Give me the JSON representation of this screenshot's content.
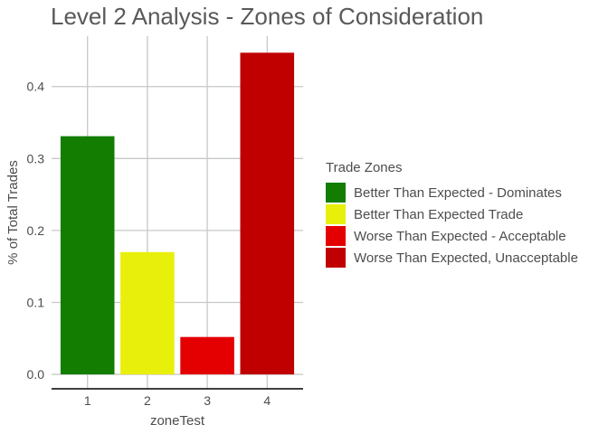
{
  "chart_data": {
    "type": "bar",
    "title": "Level 2 Analysis - Zones of Consideration",
    "xlabel": "zoneTest",
    "ylabel": "% of Total Trades",
    "categories": [
      "1",
      "2",
      "3",
      "4"
    ],
    "values": [
      0.331,
      0.17,
      0.052,
      0.447
    ],
    "colors": [
      "#127d00",
      "#e8ef0b",
      "#e40000",
      "#c00000"
    ],
    "ylim": [
      -0.02,
      0.47
    ],
    "yticks": [
      0.0,
      0.1,
      0.2,
      0.3,
      0.4
    ],
    "ytick_labels": [
      "0.0",
      "0.1",
      "0.2",
      "0.3",
      "0.4"
    ],
    "grid": true,
    "legend": {
      "title": "Trade Zones",
      "placement": "right",
      "entries": [
        {
          "label": "Better Than Expected - Dominates",
          "color": "#127d00"
        },
        {
          "label": "Better Than Expected Trade",
          "color": "#e8ef0b"
        },
        {
          "label": "Worse Than Expected - Acceptable",
          "color": "#e40000"
        },
        {
          "label": "Worse Than Expected, Unacceptable",
          "color": "#c00000"
        }
      ]
    }
  }
}
